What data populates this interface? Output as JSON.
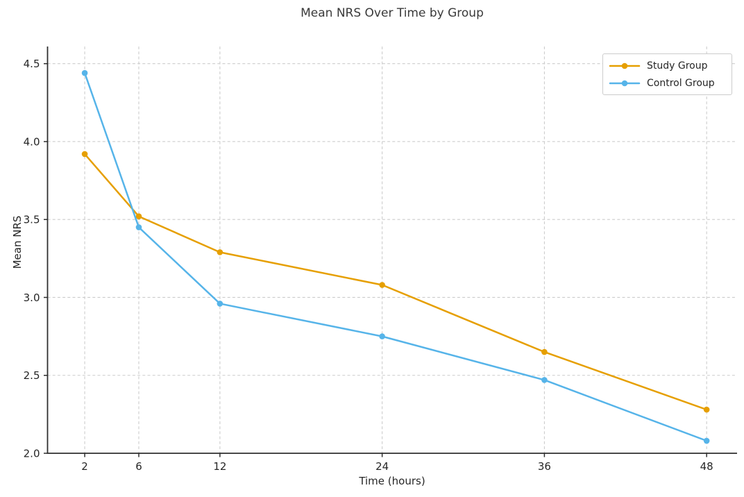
{
  "chart_data": {
    "type": "line",
    "title": "Mean NRS Over Time by Group",
    "xlabel": "Time (hours)",
    "ylabel": "Mean NRS",
    "x": [
      2,
      6,
      12,
      24,
      36,
      48
    ],
    "series": [
      {
        "name": "Study Group",
        "color": "#E69F00",
        "values": [
          3.92,
          3.52,
          3.29,
          3.08,
          2.65,
          2.28
        ]
      },
      {
        "name": "Control Group",
        "color": "#56B4E9",
        "values": [
          4.44,
          3.45,
          2.96,
          2.75,
          2.47,
          2.08
        ]
      }
    ],
    "xlim": [
      -0.75,
      50.25
    ],
    "ylim": [
      2.0,
      4.61
    ],
    "xticks": [
      2,
      6,
      12,
      24,
      36,
      48
    ],
    "xtick_labels": [
      "2",
      "6",
      "12",
      "24",
      "36",
      "48"
    ],
    "yticks": [
      2.0,
      2.5,
      3.0,
      3.5,
      4.0,
      4.5
    ],
    "ytick_labels": [
      "2.0",
      "2.5",
      "3.0",
      "3.5",
      "4.0",
      "4.5"
    ],
    "grid": true,
    "grid_color": "#cccccc",
    "spine_color": "#2e2e2e",
    "legend_position": "upper right",
    "background_color": "#ffffff"
  }
}
